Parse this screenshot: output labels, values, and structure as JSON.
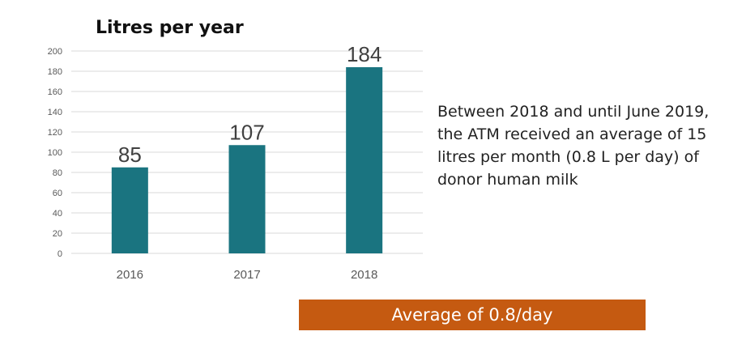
{
  "chart_data": {
    "type": "bar",
    "title": "Litres per year",
    "categories": [
      "2016",
      "2017",
      "2018"
    ],
    "values": [
      85,
      107,
      184
    ],
    "data_labels": [
      "85",
      "107",
      "184"
    ],
    "ylim": [
      0,
      200
    ],
    "y_ticks": [
      0,
      20,
      40,
      60,
      80,
      100,
      120,
      140,
      160,
      180,
      200
    ],
    "grid": true,
    "bar_color": "#1a7480",
    "xlabel": "",
    "ylabel": ""
  },
  "note": {
    "text": "Between 2018 and until June 2019, the ATM received an average of 15 litres per month (0.8 L per day) of donor human milk"
  },
  "banner": {
    "text": "Average of 0.8/day",
    "color": "#c55a11"
  }
}
